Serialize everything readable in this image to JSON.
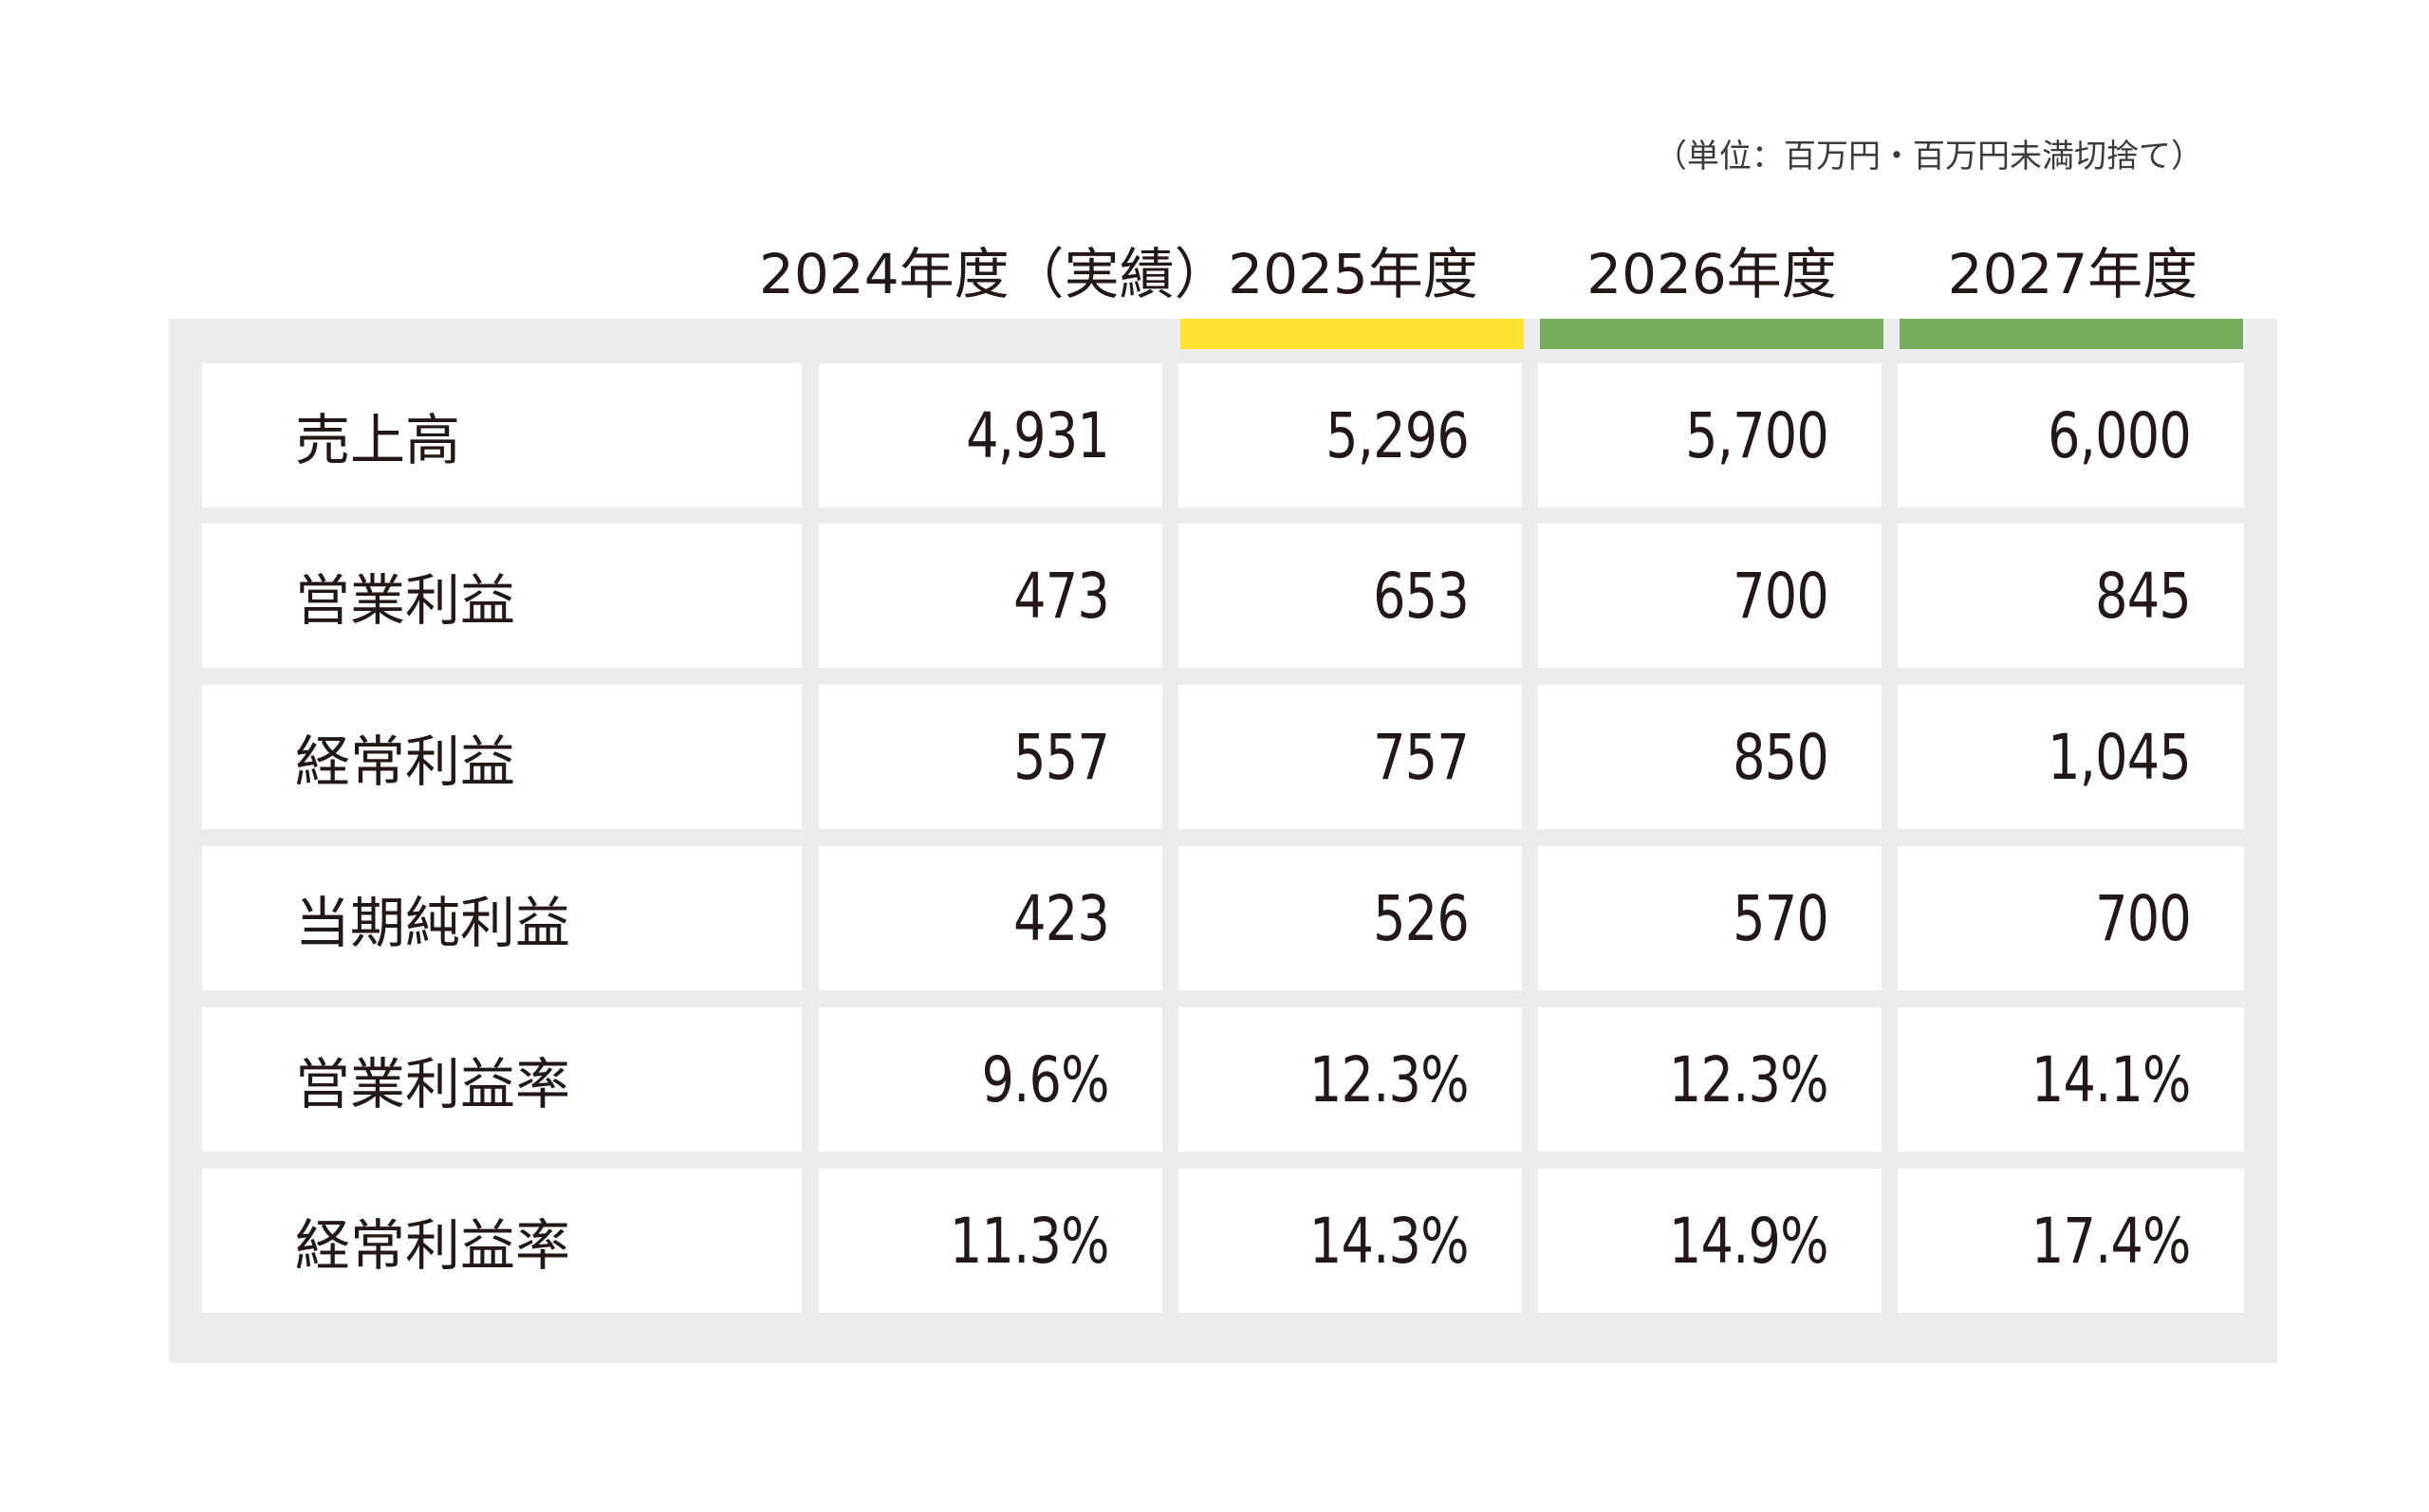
{
  "unit_note": "（単位：百万円・百万円未満切捨て）",
  "columns": [
    {
      "label": "2024年度（実績）"
    },
    {
      "label": "2025年度",
      "accent": "#fde231"
    },
    {
      "label": "2026年度",
      "accent": "#75ad5c"
    },
    {
      "label": "2027年度",
      "accent": "#75ad5c"
    }
  ],
  "rows": [
    {
      "label": "売上高",
      "values": [
        "4,931",
        "5,296",
        "5,700",
        "6,000"
      ]
    },
    {
      "label": "営業利益",
      "values": [
        "473",
        "653",
        "700",
        "845"
      ]
    },
    {
      "label": "経常利益",
      "values": [
        "557",
        "757",
        "850",
        "1,045"
      ]
    },
    {
      "label": "当期純利益",
      "values": [
        "423",
        "526",
        "570",
        "700"
      ]
    },
    {
      "label": "営業利益率",
      "values": [
        "9.6%",
        "12.3%",
        "12.3%",
        "14.1%"
      ]
    },
    {
      "label": "経常利益率",
      "values": [
        "11.3%",
        "14.3%",
        "14.9%",
        "17.4%"
      ]
    }
  ],
  "colors": {
    "panel": "#ebecee",
    "cell": "#ffffff",
    "text": "#231815",
    "highlight_2025": "#fde231",
    "highlight_plan": "#75ad5c"
  }
}
